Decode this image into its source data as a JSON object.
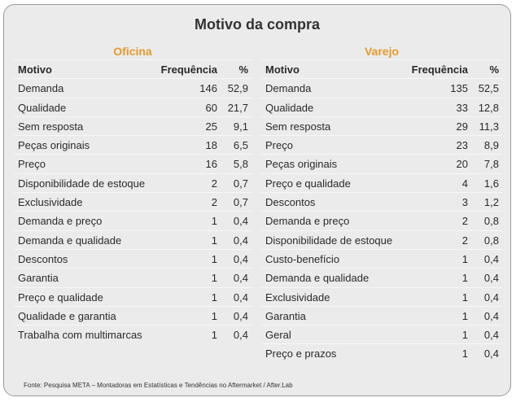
{
  "title": "Motivo da compra",
  "headers": {
    "motivo": "Motivo",
    "freq": "Frequência",
    "pct": "%"
  },
  "oficina": {
    "label": "Oficina",
    "rows": [
      [
        "Demanda",
        "146",
        "52,9"
      ],
      [
        "Qualidade",
        "60",
        "21,7"
      ],
      [
        "Sem resposta",
        "25",
        "9,1"
      ],
      [
        "Peças originais",
        "18",
        "6,5"
      ],
      [
        "Preço",
        "16",
        "5,8"
      ],
      [
        "Disponibilidade de estoque",
        "2",
        "0,7"
      ],
      [
        "Exclusividade",
        "2",
        "0,7"
      ],
      [
        "Demanda e preço",
        "1",
        "0,4"
      ],
      [
        "Demanda e qualidade",
        "1",
        "0,4"
      ],
      [
        "Descontos",
        "1",
        "0,4"
      ],
      [
        "Garantia",
        "1",
        "0,4"
      ],
      [
        "Preço e qualidade",
        "1",
        "0,4"
      ],
      [
        "Qualidade e garantia",
        "1",
        "0,4"
      ],
      [
        "Trabalha com multimarcas",
        "1",
        "0,4"
      ]
    ]
  },
  "varejo": {
    "label": "Varejo",
    "rows": [
      [
        "Demanda",
        "135",
        "52,5"
      ],
      [
        "Qualidade",
        "33",
        "12,8"
      ],
      [
        "Sem resposta",
        "29",
        "11,3"
      ],
      [
        "Preço",
        "23",
        "8,9"
      ],
      [
        "Peças originais",
        "20",
        "7,8"
      ],
      [
        "Preço e qualidade",
        "4",
        "1,6"
      ],
      [
        "Descontos",
        "3",
        "1,2"
      ],
      [
        "Demanda e preço",
        "2",
        "0,8"
      ],
      [
        "Disponibilidade de estoque",
        "2",
        "0,8"
      ],
      [
        "Custo-benefício",
        "1",
        "0,4"
      ],
      [
        "Demanda e qualidade",
        "1",
        "0,4"
      ],
      [
        "Exclusividade",
        "1",
        "0,4"
      ],
      [
        "Garantia",
        "1",
        "0,4"
      ],
      [
        "Geral",
        "1",
        "0,4"
      ],
      [
        "Preço e prazos",
        "1",
        "0,4"
      ]
    ]
  },
  "source": "Fonte: Pesquisa META – Montadoras em Estatísticas e Tendências no Aftermarket / After.Lab"
}
